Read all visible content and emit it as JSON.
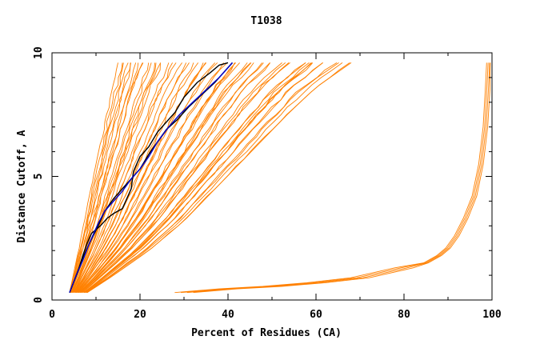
{
  "chart_data": {
    "type": "line",
    "title": "T1038",
    "xlabel": "Percent of Residues (CA)",
    "ylabel": "Distance Cutoff, A",
    "xlim": [
      0,
      100
    ],
    "ylim": [
      0,
      10
    ],
    "x_ticks": [
      "0",
      "20",
      "40",
      "60",
      "80",
      "100"
    ],
    "y_ticks": [
      "0",
      "5",
      "10"
    ],
    "x_minor_step": 10,
    "y_minor_step": 1,
    "grid": false,
    "colors": {
      "models": "#ff8000",
      "highlight_black": "#000000",
      "highlight_blue": "#0000cc",
      "frame": "#000000"
    },
    "series": [
      {
        "color_key": "highlight_black",
        "x": [
          4,
          6,
          7,
          8,
          9,
          11,
          12.5,
          14,
          16,
          18,
          18.5,
          20,
          22,
          24,
          26,
          28,
          30,
          33,
          36,
          38,
          40
        ],
        "y": [
          0.3,
          1.2,
          1.8,
          2.3,
          2.7,
          3.0,
          3.3,
          3.5,
          3.7,
          4.5,
          5.2,
          5.8,
          6.2,
          6.8,
          7.2,
          7.6,
          8.2,
          8.8,
          9.2,
          9.5,
          9.6
        ]
      },
      {
        "color_key": "highlight_black",
        "x": [
          4,
          5.5,
          7,
          8.5,
          10.5,
          12,
          14,
          16,
          18,
          20,
          22,
          24,
          26,
          28.5,
          31,
          34,
          37,
          39,
          41
        ],
        "y": [
          0.3,
          1.0,
          1.7,
          2.3,
          3.0,
          3.6,
          4.1,
          4.5,
          4.9,
          5.3,
          5.9,
          6.4,
          6.9,
          7.3,
          7.8,
          8.3,
          8.8,
          9.2,
          9.6
        ]
      },
      {
        "color_key": "highlight_blue",
        "x": [
          4,
          5.5,
          7,
          8.5,
          10.5,
          12,
          14,
          16,
          18,
          20,
          22,
          24,
          26.5,
          29,
          32,
          35,
          38,
          41
        ],
        "y": [
          0.3,
          1.0,
          1.6,
          2.3,
          3.1,
          3.6,
          4.0,
          4.4,
          4.9,
          5.3,
          5.8,
          6.4,
          7.0,
          7.5,
          8.0,
          8.5,
          9.0,
          9.6
        ]
      }
    ],
    "model_band_low": {
      "x": [
        4,
        6,
        8,
        10,
        12,
        14,
        15
      ],
      "y": [
        0.3,
        2.0,
        3.8,
        5.5,
        7.2,
        8.8,
        9.6
      ]
    },
    "model_band_high": {
      "x": [
        8,
        14,
        22,
        30,
        36,
        42,
        48,
        54,
        60,
        68
      ],
      "y": [
        0.3,
        1.0,
        2.0,
        3.2,
        4.3,
        5.4,
        6.5,
        7.6,
        8.6,
        9.6
      ]
    },
    "model_outlier": {
      "x": [
        30,
        40,
        50,
        60,
        70,
        80,
        85,
        88,
        90,
        92,
        94,
        96,
        97.5,
        98.5,
        99,
        99.3
      ],
      "y": [
        0.3,
        0.45,
        0.55,
        0.7,
        0.9,
        1.3,
        1.5,
        1.8,
        2.1,
        2.6,
        3.3,
        4.2,
        5.5,
        7.0,
        8.5,
        9.6
      ]
    }
  }
}
